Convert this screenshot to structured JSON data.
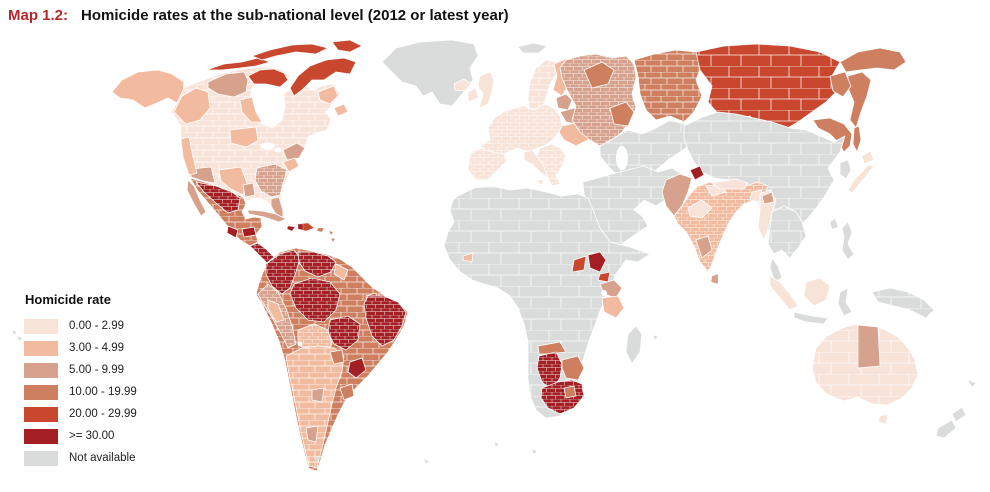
{
  "title": {
    "label": "Map 1.2:",
    "text": "Homicide rates at the sub-national level (2012 or latest year)"
  },
  "colors": {
    "title_label": "#b4282e",
    "title_text": "#121212",
    "ocean": "#ffffff",
    "region_border": "#ffffff"
  },
  "legend": {
    "title": "Homicide rate",
    "items": [
      {
        "id": "cat1",
        "label": "0.00 - 2.99",
        "color": "#f8e3d9"
      },
      {
        "id": "cat2",
        "label": "3.00 - 4.99",
        "color": "#f2bb9f"
      },
      {
        "id": "cat3",
        "label": "5.00 - 9.99",
        "color": "#d7a28d"
      },
      {
        "id": "cat4",
        "label": "10.00 - 19.99",
        "color": "#ce7f60"
      },
      {
        "id": "cat5",
        "label": "20.00 - 29.99",
        "color": "#c9472e"
      },
      {
        "id": "cat6",
        "label": ">= 30.00",
        "color": "#a31f24"
      },
      {
        "id": "na",
        "label": "Not available",
        "color": "#d9dcda"
      }
    ]
  },
  "map": {
    "type": "choropleth-world-map",
    "description": "World map shaded by homicide rate category for sub-national regions",
    "regions": [
      {
        "name": "greenland",
        "category": "na"
      },
      {
        "name": "svalbard",
        "category": "na"
      },
      {
        "name": "iceland",
        "category": "cat1"
      },
      {
        "name": "alaska",
        "category": "cat2"
      },
      {
        "name": "north-america",
        "category": "cat1"
      },
      {
        "name": "canada-bc",
        "category": "cat2"
      },
      {
        "name": "canada-nwt",
        "category": "cat3"
      },
      {
        "name": "canada-manitoba",
        "category": "cat2"
      },
      {
        "name": "nunavut-mainland",
        "category": "cat5"
      },
      {
        "name": "arctic-islands",
        "category": "cat5"
      },
      {
        "name": "baffin-island",
        "category": "cat5"
      },
      {
        "name": "high-arctic",
        "category": "cat5"
      },
      {
        "name": "ellesmere",
        "category": "cat5"
      },
      {
        "name": "labrador",
        "category": "cat2"
      },
      {
        "name": "newfoundland",
        "category": "cat2"
      },
      {
        "name": "usa-montana-dakotas",
        "category": "cat2"
      },
      {
        "name": "usa-northeast",
        "category": "cat3"
      },
      {
        "name": "usa-mid-atlantic",
        "category": "cat2"
      },
      {
        "name": "usa-southeast",
        "category": "cat3"
      },
      {
        "name": "usa-florida",
        "category": "cat3"
      },
      {
        "name": "usa-texas",
        "category": "cat2"
      },
      {
        "name": "usa-louisiana",
        "category": "cat3"
      },
      {
        "name": "usa-southwest",
        "category": "cat3"
      },
      {
        "name": "usa-california",
        "category": "cat2"
      },
      {
        "name": "mexico",
        "category": "cat4"
      },
      {
        "name": "baja-california",
        "category": "cat3"
      },
      {
        "name": "mexico-north",
        "category": "cat6"
      },
      {
        "name": "mexico-yucatan",
        "category": "cat6"
      },
      {
        "name": "mexico-guerrero",
        "category": "cat6"
      },
      {
        "name": "central-america",
        "category": "cat6"
      },
      {
        "name": "panama",
        "category": "cat4"
      },
      {
        "name": "cuba",
        "category": "cat3"
      },
      {
        "name": "jamaica",
        "category": "cat6"
      },
      {
        "name": "hispaniola",
        "category": "cat5"
      },
      {
        "name": "haiti",
        "category": "cat6"
      },
      {
        "name": "puerto-rico",
        "category": "cat4"
      },
      {
        "name": "lesser-antilles",
        "category": "cat4"
      },
      {
        "name": "south-america",
        "category": "cat4"
      },
      {
        "name": "colombia",
        "category": "cat6"
      },
      {
        "name": "venezuela",
        "category": "cat6"
      },
      {
        "name": "guyana",
        "category": "cat2"
      },
      {
        "name": "amazonas-brazil",
        "category": "cat6"
      },
      {
        "name": "maranhao",
        "category": "cat5"
      },
      {
        "name": "northeast-brazil",
        "category": "cat6"
      },
      {
        "name": "mato-grosso-brazil",
        "category": "cat6"
      },
      {
        "name": "south-brazil",
        "category": "cat6"
      },
      {
        "name": "peru",
        "category": "cat3"
      },
      {
        "name": "peru-coast",
        "category": "cat2"
      },
      {
        "name": "bolivia",
        "category": "cat2"
      },
      {
        "name": "southern-cone",
        "category": "cat2"
      },
      {
        "name": "paraguay",
        "category": "cat4"
      },
      {
        "name": "cordoba-argentina",
        "category": "cat3"
      },
      {
        "name": "patagonia",
        "category": "cat3"
      },
      {
        "name": "uruguay",
        "category": "cat4"
      },
      {
        "name": "falkland-islands",
        "category": "na"
      },
      {
        "name": "atlantic-islands",
        "category": "na"
      },
      {
        "name": "southern-ocean-islands",
        "category": "na"
      },
      {
        "name": "hawaii",
        "category": "na"
      },
      {
        "name": "uk",
        "category": "cat1"
      },
      {
        "name": "ireland",
        "category": "cat1"
      },
      {
        "name": "scandinavia",
        "category": "cat1"
      },
      {
        "name": "denmark",
        "category": "cat1"
      },
      {
        "name": "finland",
        "category": "cat2"
      },
      {
        "name": "europe-main",
        "category": "cat1"
      },
      {
        "name": "iberia",
        "category": "cat1"
      },
      {
        "name": "italy",
        "category": "cat1"
      },
      {
        "name": "sicily",
        "category": "cat1"
      },
      {
        "name": "balkans",
        "category": "cat1"
      },
      {
        "name": "baltic-states",
        "category": "cat3"
      },
      {
        "name": "belarus",
        "category": "cat3"
      },
      {
        "name": "ukraine",
        "category": "cat2"
      },
      {
        "name": "west-russia",
        "category": "cat3"
      },
      {
        "name": "northwest-russia",
        "category": "cat4"
      },
      {
        "name": "volga-russia",
        "category": "cat4"
      },
      {
        "name": "ural-west-siberia",
        "category": "cat4"
      },
      {
        "name": "siberia",
        "category": "cat5"
      },
      {
        "name": "tuva",
        "category": "cat6"
      },
      {
        "name": "chukotka",
        "category": "cat4"
      },
      {
        "name": "kamchatka",
        "category": "cat4"
      },
      {
        "name": "magadan",
        "category": "cat4"
      },
      {
        "name": "amur-primorye",
        "category": "cat4"
      },
      {
        "name": "sakhalin",
        "category": "cat4"
      },
      {
        "name": "kazakhstan-central-asia",
        "category": "na"
      },
      {
        "name": "middle-east",
        "category": "na"
      },
      {
        "name": "africa",
        "category": "na"
      },
      {
        "name": "west-africa-gambia",
        "category": "cat2"
      },
      {
        "name": "south-sudan",
        "category": "cat6"
      },
      {
        "name": "south-sudan-west",
        "category": "cat5"
      },
      {
        "name": "south-sudan-east",
        "category": "cat5"
      },
      {
        "name": "uganda-kenya",
        "category": "cat3"
      },
      {
        "name": "tanzania",
        "category": "cat2"
      },
      {
        "name": "namibia-north",
        "category": "cat4"
      },
      {
        "name": "namibia",
        "category": "cat6"
      },
      {
        "name": "botswana",
        "category": "cat4"
      },
      {
        "name": "south-africa",
        "category": "cat6"
      },
      {
        "name": "south-africa-inner",
        "category": "cat4"
      },
      {
        "name": "madagascar",
        "category": "na"
      },
      {
        "name": "indian-ocean-islands",
        "category": "na"
      },
      {
        "name": "china-mongolia",
        "category": "na"
      },
      {
        "name": "pakistan",
        "category": "cat3"
      },
      {
        "name": "kashmir",
        "category": "cat6"
      },
      {
        "name": "india",
        "category": "cat2"
      },
      {
        "name": "india-north",
        "category": "cat1"
      },
      {
        "name": "india-central",
        "category": "cat1"
      },
      {
        "name": "india-south",
        "category": "cat3"
      },
      {
        "name": "sri-lanka",
        "category": "cat3"
      },
      {
        "name": "bangladesh",
        "category": "cat1"
      },
      {
        "name": "nepal",
        "category": "cat1"
      },
      {
        "name": "myanmar",
        "category": "cat1"
      },
      {
        "name": "myanmar-north",
        "category": "cat3"
      },
      {
        "name": "indochina",
        "category": "na"
      },
      {
        "name": "malay-peninsula",
        "category": "na"
      },
      {
        "name": "sumatra",
        "category": "cat1"
      },
      {
        "name": "java",
        "category": "na"
      },
      {
        "name": "borneo",
        "category": "cat1"
      },
      {
        "name": "sulawesi",
        "category": "na"
      },
      {
        "name": "philippines",
        "category": "na"
      },
      {
        "name": "new-guinea",
        "category": "na"
      },
      {
        "name": "korea",
        "category": "na"
      },
      {
        "name": "japan",
        "category": "cat1"
      },
      {
        "name": "hokkaido",
        "category": "cat1"
      },
      {
        "name": "taiwan",
        "category": "na"
      },
      {
        "name": "australia",
        "category": "cat1"
      },
      {
        "name": "northern-territory",
        "category": "cat3"
      },
      {
        "name": "tasmania",
        "category": "cat1"
      },
      {
        "name": "new-zealand-north",
        "category": "na"
      },
      {
        "name": "new-zealand-south",
        "category": "na"
      },
      {
        "name": "new-caledonia",
        "category": "na"
      }
    ]
  }
}
